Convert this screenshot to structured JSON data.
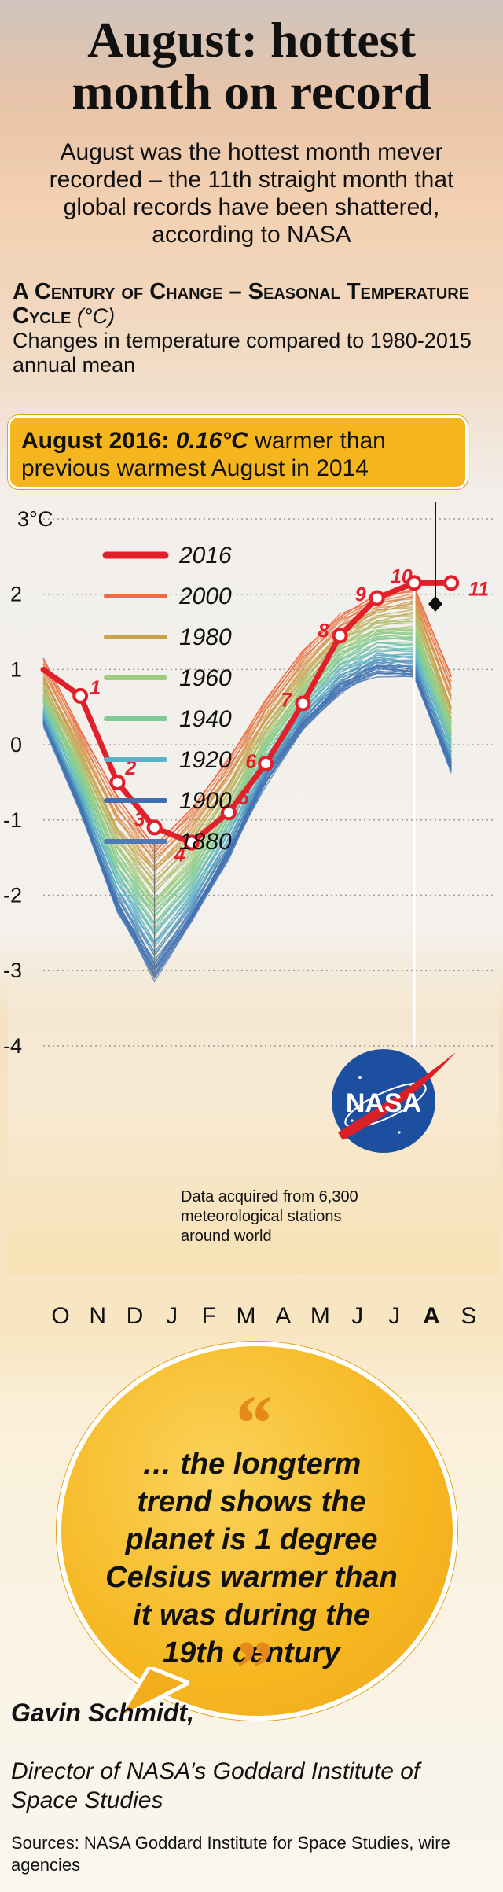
{
  "headline": {
    "line1": "August: hottest",
    "line2": "month on record"
  },
  "intro": "August was the hottest month mever recorded – the 11th straight month that global records have been shattered, according to NASA",
  "section": {
    "title": "A Century of Change – Seasonal Temperature Cycle",
    "unit": "(°C)",
    "subtitle": "Changes in temperature compared to 1980-2015 annual mean"
  },
  "callout": {
    "lead": "August 2016:",
    "value": "0.16°C",
    "rest": "warmer than previous warmest August in 2014"
  },
  "chart_data": {
    "type": "line",
    "title": "A Century of Change – Seasonal Temperature Cycle (°C)",
    "ylabel": "°C",
    "ylim": [
      -4,
      3
    ],
    "ytick_labels": [
      "3°C",
      "2",
      "1",
      "0",
      "-1",
      "-2",
      "-3",
      "-4"
    ],
    "yticks": [
      3,
      2,
      1,
      0,
      -1,
      -2,
      -3,
      -4
    ],
    "categories": [
      "O",
      "N",
      "D",
      "J",
      "F",
      "M",
      "A",
      "M",
      "J",
      "J",
      "A",
      "S"
    ],
    "highlight_category": "A",
    "series": [
      {
        "name": "2016",
        "color": "#e2202b",
        "values": [
          1.0,
          0.65,
          -0.5,
          -1.1,
          -1.3,
          -0.9,
          -0.25,
          0.55,
          1.45,
          1.95,
          2.15,
          2.15
        ]
      },
      {
        "name": "2000",
        "color": "#ef6b43",
        "values": [
          1.15,
          0.2,
          -0.7,
          -1.35,
          -0.85,
          -0.2,
          0.6,
          1.25,
          1.7,
          2.0,
          2.1,
          0.9
        ]
      },
      {
        "name": "1980",
        "color": "#c7a34a",
        "values": [
          0.85,
          -0.1,
          -1.1,
          -1.7,
          -1.2,
          -0.5,
          0.3,
          0.95,
          1.5,
          1.75,
          1.85,
          0.5
        ]
      },
      {
        "name": "1960",
        "color": "#9ccc7f",
        "values": [
          0.7,
          -0.3,
          -1.4,
          -2.05,
          -1.55,
          -0.8,
          0.1,
          0.75,
          1.3,
          1.55,
          1.55,
          0.3
        ]
      },
      {
        "name": "1940",
        "color": "#7ecb96",
        "values": [
          0.6,
          -0.45,
          -1.6,
          -2.3,
          -1.75,
          -0.95,
          -0.05,
          0.6,
          1.15,
          1.4,
          1.4,
          0.15
        ]
      },
      {
        "name": "1920",
        "color": "#5ab2c9",
        "values": [
          0.45,
          -0.65,
          -1.85,
          -2.6,
          -2.0,
          -1.2,
          -0.25,
          0.45,
          0.95,
          1.2,
          1.2,
          -0.05
        ]
      },
      {
        "name": "1900",
        "color": "#3f6fb0",
        "values": [
          0.35,
          -0.8,
          -2.1,
          -2.95,
          -2.25,
          -1.4,
          -0.4,
          0.3,
          0.8,
          1.05,
          1.0,
          -0.25
        ]
      },
      {
        "name": "1880",
        "color": "#4c7bb8",
        "values": [
          0.3,
          -0.9,
          -2.2,
          -3.1,
          -2.35,
          -1.5,
          -0.5,
          0.2,
          0.7,
          0.95,
          0.9,
          -0.35
        ]
      }
    ],
    "point_labels": [
      "1",
      "2",
      "3",
      "4",
      "5",
      "6",
      "7",
      "8",
      "9",
      "10",
      "11"
    ],
    "legend_position": "top-left",
    "annotation": "Data acquired from 6,300 meteorological stations around world",
    "logo_text": "NASA"
  },
  "quote": {
    "open": "“",
    "text": "… the longterm trend shows the planet is 1 degree Celsius warmer than it was during the 19th century",
    "close": "”"
  },
  "attribution": {
    "name": "Gavin Schmidt",
    "role": "Director of NASA’s Goddard Institute of Space Studies"
  },
  "sources": "Sources: NASA Goddard Institute for Space Studies, wire agencies"
}
